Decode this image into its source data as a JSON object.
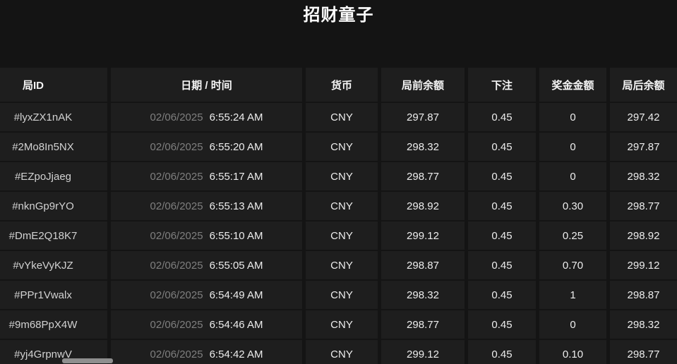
{
  "page": {
    "title": "招财童子",
    "colors": {
      "background": "#141414",
      "cell_background": "#1e1e1e",
      "header_text": "#f5f5f5",
      "body_text": "#ededed",
      "muted_date_text": "#7f7f7f",
      "scrollbar_thumb": "#8f8f8f"
    }
  },
  "table": {
    "columns": [
      {
        "id": "round_id",
        "label": "局ID"
      },
      {
        "id": "datetime",
        "label": "日期 / 时间"
      },
      {
        "id": "currency",
        "label": "货币"
      },
      {
        "id": "balance_before",
        "label": "局前余额"
      },
      {
        "id": "bet",
        "label": "下注"
      },
      {
        "id": "bonus",
        "label": "奖金金额"
      },
      {
        "id": "balance_after",
        "label": "局后余额"
      }
    ],
    "rows": [
      {
        "round_id": "#lyxZX1nAK",
        "date": "02/06/2025",
        "time": "6:55:24 AM",
        "currency": "CNY",
        "balance_before": "297.87",
        "bet": "0.45",
        "bonus": "0",
        "balance_after": "297.42"
      },
      {
        "round_id": "#2Mo8In5NX",
        "date": "02/06/2025",
        "time": "6:55:20 AM",
        "currency": "CNY",
        "balance_before": "298.32",
        "bet": "0.45",
        "bonus": "0",
        "balance_after": "297.87"
      },
      {
        "round_id": "#EZpoJjaeg",
        "date": "02/06/2025",
        "time": "6:55:17 AM",
        "currency": "CNY",
        "balance_before": "298.77",
        "bet": "0.45",
        "bonus": "0",
        "balance_after": "298.32"
      },
      {
        "round_id": "#nknGp9rYO",
        "date": "02/06/2025",
        "time": "6:55:13 AM",
        "currency": "CNY",
        "balance_before": "298.92",
        "bet": "0.45",
        "bonus": "0.30",
        "balance_after": "298.77"
      },
      {
        "round_id": "#DmE2Q18K7",
        "date": "02/06/2025",
        "time": "6:55:10 AM",
        "currency": "CNY",
        "balance_before": "299.12",
        "bet": "0.45",
        "bonus": "0.25",
        "balance_after": "298.92"
      },
      {
        "round_id": "#vYkeVyKJZ",
        "date": "02/06/2025",
        "time": "6:55:05 AM",
        "currency": "CNY",
        "balance_before": "298.87",
        "bet": "0.45",
        "bonus": "0.70",
        "balance_after": "299.12"
      },
      {
        "round_id": "#PPr1Vwalx",
        "date": "02/06/2025",
        "time": "6:54:49 AM",
        "currency": "CNY",
        "balance_before": "298.32",
        "bet": "0.45",
        "bonus": "1",
        "balance_after": "298.87"
      },
      {
        "round_id": "#9m68PpX4W",
        "date": "02/06/2025",
        "time": "6:54:46 AM",
        "currency": "CNY",
        "balance_before": "298.77",
        "bet": "0.45",
        "bonus": "0",
        "balance_after": "298.32"
      },
      {
        "round_id": "#yj4GrpnwV",
        "date": "02/06/2025",
        "time": "6:54:42 AM",
        "currency": "CNY",
        "balance_before": "299.12",
        "bet": "0.45",
        "bonus": "0.10",
        "balance_after": "298.77"
      }
    ]
  },
  "scrollbar": {
    "orientation": "horizontal",
    "visible": true
  }
}
